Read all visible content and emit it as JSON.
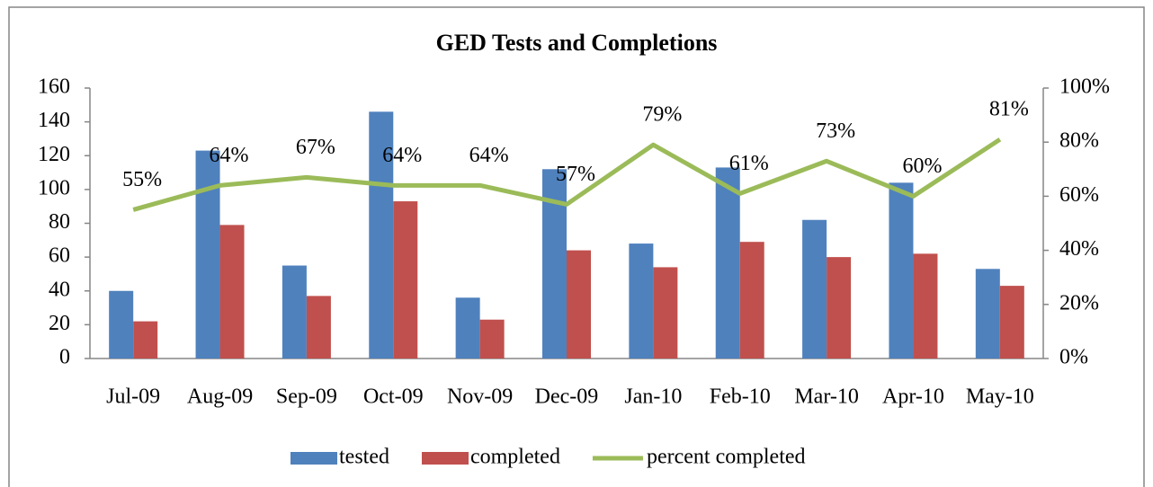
{
  "chart_data": {
    "type": "bar",
    "title": "GED Tests and Completions",
    "categories": [
      "Jul-09",
      "Aug-09",
      "Sep-09",
      "Oct-09",
      "Nov-09",
      "Dec-09",
      "Jan-10",
      "Feb-10",
      "Mar-10",
      "Apr-10",
      "May-10"
    ],
    "series": [
      {
        "name": "tested",
        "color": "#4f81bd",
        "type": "bar",
        "values": [
          40,
          123,
          55,
          146,
          36,
          112,
          68,
          113,
          82,
          104,
          53
        ]
      },
      {
        "name": "completed",
        "color": "#c0504d",
        "type": "bar",
        "values": [
          22,
          79,
          37,
          93,
          23,
          64,
          54,
          69,
          60,
          62,
          43
        ]
      },
      {
        "name": "percent completed",
        "color": "#9bbb59",
        "type": "line",
        "axis": "y2",
        "values": [
          55,
          64,
          67,
          64,
          64,
          57,
          79,
          61,
          73,
          60,
          81
        ],
        "value_labels": [
          "55%",
          "64%",
          "67%",
          "64%",
          "64%",
          "57%",
          "79%",
          "61%",
          "73%",
          "60%",
          "81%"
        ]
      }
    ],
    "ylim": [
      0,
      160
    ],
    "yticks": [
      0,
      20,
      40,
      60,
      80,
      100,
      120,
      140,
      160
    ],
    "y2lim": [
      0,
      100
    ],
    "y2ticks": [
      {
        "value": 0,
        "label": "0%"
      },
      {
        "value": 20,
        "label": "20%"
      },
      {
        "value": 40,
        "label": "40%"
      },
      {
        "value": 60,
        "label": "60%"
      },
      {
        "value": 80,
        "label": "80%"
      },
      {
        "value": 100,
        "label": "100%"
      }
    ],
    "grid": false,
    "legend": "bottom"
  }
}
